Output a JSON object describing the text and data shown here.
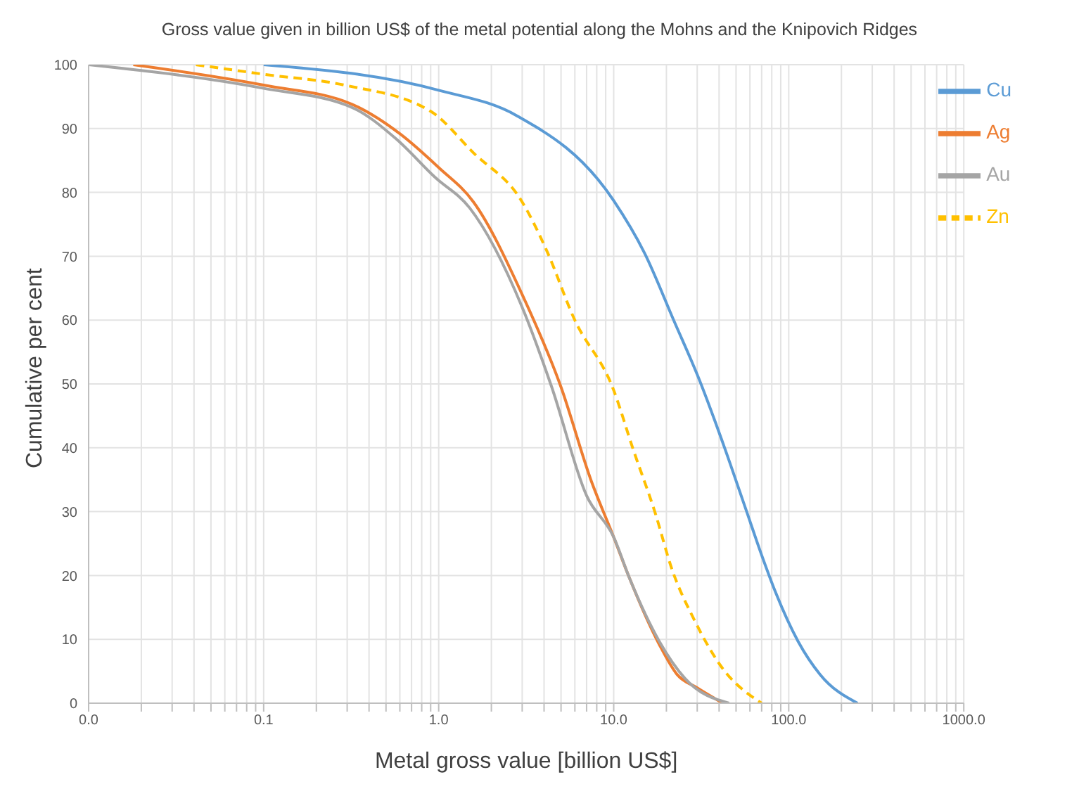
{
  "chart_data": {
    "type": "line",
    "title": "Gross value given in billion US$ of the metal potential along the Mohns and the Knipovich Ridges",
    "xlabel": "Metal gross value [billion US$]",
    "ylabel": "Cumulative per cent",
    "log": "x",
    "grid": true,
    "legend": "top right",
    "marker": "none",
    "xlim": [
      0.01,
      1000
    ],
    "ylim": [
      0,
      100
    ],
    "yticks": [
      0,
      10,
      20,
      30,
      40,
      50,
      60,
      70,
      80,
      90,
      100
    ],
    "xticks": [
      {
        "value": 0.01,
        "label": "0.0"
      },
      {
        "value": 0.02,
        "label": null
      },
      {
        "value": 0.03,
        "label": null
      },
      {
        "value": 0.04,
        "label": null
      },
      {
        "value": 0.05,
        "label": null
      },
      {
        "value": 0.06,
        "label": null
      },
      {
        "value": 0.07,
        "label": null
      },
      {
        "value": 0.08,
        "label": null
      },
      {
        "value": 0.09,
        "label": null
      },
      {
        "value": 0.1,
        "label": "0.1"
      },
      {
        "value": 0.2,
        "label": null
      },
      {
        "value": 0.3,
        "label": null
      },
      {
        "value": 0.4,
        "label": null
      },
      {
        "value": 0.5,
        "label": null
      },
      {
        "value": 0.6,
        "label": null
      },
      {
        "value": 0.7,
        "label": null
      },
      {
        "value": 0.8,
        "label": null
      },
      {
        "value": 0.9,
        "label": null
      },
      {
        "value": 1,
        "label": "1.0"
      },
      {
        "value": 2,
        "label": null
      },
      {
        "value": 3,
        "label": null
      },
      {
        "value": 4,
        "label": null
      },
      {
        "value": 5,
        "label": null
      },
      {
        "value": 6,
        "label": null
      },
      {
        "value": 7,
        "label": null
      },
      {
        "value": 8,
        "label": null
      },
      {
        "value": 9,
        "label": null
      },
      {
        "value": 10,
        "label": "10.0"
      },
      {
        "value": 20,
        "label": null
      },
      {
        "value": 30,
        "label": null
      },
      {
        "value": 40,
        "label": null
      },
      {
        "value": 50,
        "label": null
      },
      {
        "value": 60,
        "label": null
      },
      {
        "value": 70,
        "label": null
      },
      {
        "value": 80,
        "label": null
      },
      {
        "value": 90,
        "label": null
      },
      {
        "value": 100,
        "label": "100.0"
      },
      {
        "value": 200,
        "label": null
      },
      {
        "value": 300,
        "label": null
      },
      {
        "value": 400,
        "label": null
      },
      {
        "value": 500,
        "label": null
      },
      {
        "value": 600,
        "label": null
      },
      {
        "value": 700,
        "label": null
      },
      {
        "value": 800,
        "label": null
      },
      {
        "value": 900,
        "label": null
      },
      {
        "value": 1000,
        "label": "1000.0"
      }
    ],
    "series": [
      {
        "name": "Cu",
        "color": "#5b9bd5",
        "line_style": "solid",
        "x": [
          0.1,
          1.0,
          2.8,
          10,
          15,
          22,
          31,
          43,
          57,
          70,
          84,
          113,
          151,
          247
        ],
        "values": [
          100,
          96,
          92,
          78.7,
          70.5,
          60,
          50.5,
          40,
          30.3,
          23.2,
          17.4,
          9.7,
          4.5,
          0
        ]
      },
      {
        "name": "Ag",
        "color": "#ed7d31",
        "line_style": "solid",
        "x": [
          0.018,
          0.1,
          0.32,
          0.6,
          1.0,
          1.58,
          3.0,
          5.0,
          7.4,
          10,
          12.3,
          18.2,
          23,
          30,
          42
        ],
        "values": [
          100,
          96.8,
          93.8,
          89.2,
          83.9,
          78.5,
          64,
          49.5,
          35,
          26,
          19.6,
          9.2,
          4.5,
          2.4,
          0
        ]
      },
      {
        "name": "Au",
        "color": "#a5a5a5",
        "line_style": "solid",
        "x": [
          0.01,
          0.1,
          0.32,
          0.57,
          0.95,
          1.5,
          3.0,
          4.4,
          7.0,
          10,
          12.3,
          18.2,
          25.5,
          45.6
        ],
        "values": [
          100,
          96.3,
          93.3,
          88.4,
          82.4,
          77.6,
          62,
          49.7,
          32.5,
          26,
          19.6,
          9.7,
          3.9,
          0
        ]
      },
      {
        "name": "Zn",
        "color": "#ffc000",
        "line_style": "dashed",
        "x": [
          0.041,
          0.1,
          0.29,
          0.9,
          1.58,
          3.0,
          4.2,
          5.9,
          10,
          12.9,
          17.3,
          21.5,
          28.8,
          40.5,
          70
        ],
        "values": [
          100,
          98.5,
          96.8,
          92.7,
          86.2,
          78.5,
          70.5,
          60.4,
          49,
          39.8,
          29.7,
          21,
          13.1,
          6,
          0
        ]
      }
    ]
  }
}
